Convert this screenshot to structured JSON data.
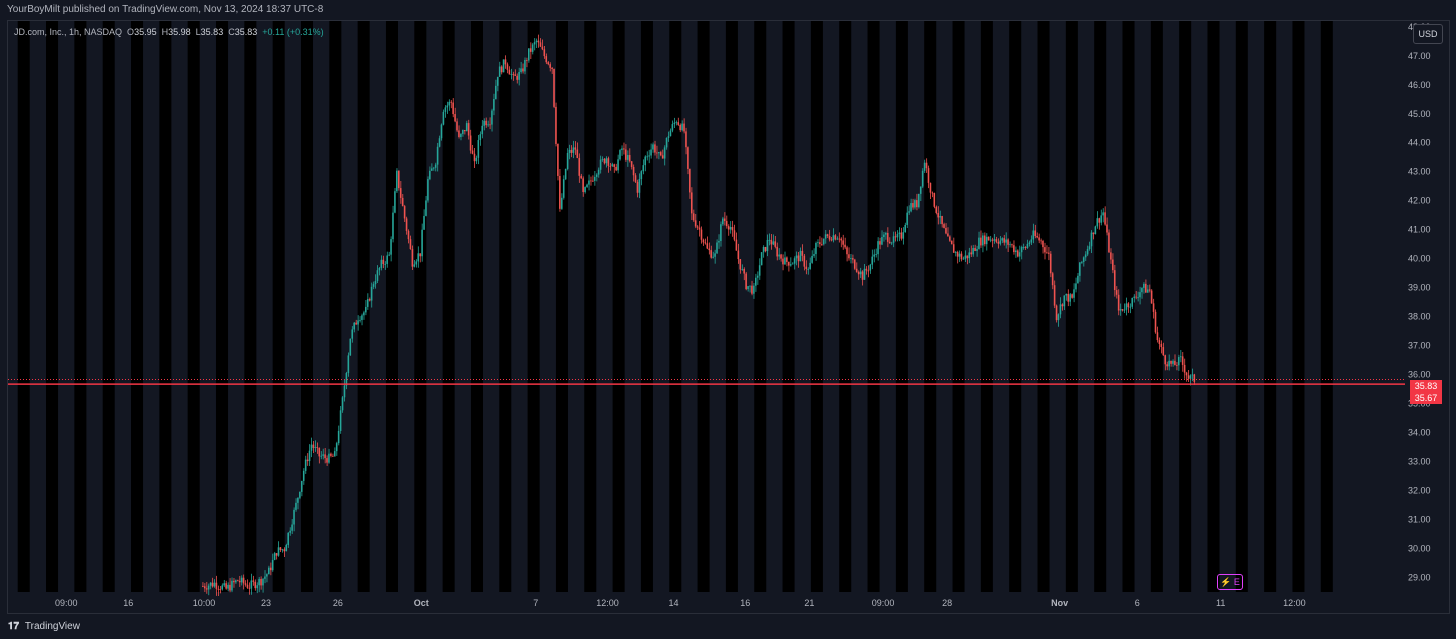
{
  "header": {
    "published_text": "YourBoyMilt published on TradingView.com, Nov 13, 2024 18:37 UTC-8"
  },
  "legend": {
    "symbol": "JD.com, Inc., 1h, NASDAQ",
    "open_label": "O",
    "open": "35.95",
    "high_label": "H",
    "high": "35.98",
    "low_label": "L",
    "low": "35.83",
    "close_label": "C",
    "close": "35.83",
    "change": "+0.11 (+0.31%)"
  },
  "currency_button": "USD",
  "footer": {
    "brand_logo": "𝟏𝟕",
    "brand_name": "TradingView"
  },
  "earnings_marker": "⚡ E",
  "price_tags": {
    "last": "35.83",
    "level": "35.67"
  },
  "colors": {
    "background": "#131722",
    "up": "#26a69a",
    "down": "#ef5350",
    "line": "#f23645",
    "session_band": "#000000"
  },
  "chart_data": {
    "type": "candlestick",
    "symbol": "JD.com, Inc.",
    "interval": "1h",
    "exchange": "NASDAQ",
    "y_axis": {
      "ylim": [
        28.5,
        48.2
      ],
      "ticks": [
        "48.00",
        "47.00",
        "46.00",
        "45.00",
        "44.00",
        "43.00",
        "42.00",
        "41.00",
        "40.00",
        "39.00",
        "38.00",
        "37.00",
        "36.00",
        "35.00",
        "34.00",
        "33.00",
        "32.00",
        "31.00",
        "30.00",
        "29.00"
      ],
      "grid": false
    },
    "x_axis": {
      "ticks": [
        {
          "label": "09:00",
          "idx": 30
        },
        {
          "label": "16",
          "idx": 62
        },
        {
          "label": "10:00",
          "idx": 101
        },
        {
          "label": "23",
          "idx": 133
        },
        {
          "label": "26",
          "idx": 170
        },
        {
          "label": "Oct",
          "idx": 213
        },
        {
          "label": "7",
          "idx": 272
        },
        {
          "label": "12:00",
          "idx": 309
        },
        {
          "label": "14",
          "idx": 343
        },
        {
          "label": "16",
          "idx": 380
        },
        {
          "label": "21",
          "idx": 413
        },
        {
          "label": "09:00",
          "idx": 451
        },
        {
          "label": "28",
          "idx": 484
        },
        {
          "label": "Nov",
          "idx": 542
        },
        {
          "label": "6",
          "idx": 582
        },
        {
          "label": "11",
          "idx": 625
        },
        {
          "label": "12:00",
          "idx": 663
        }
      ]
    },
    "horizontal_lines": [
      {
        "value": 35.83,
        "label": "35.83"
      },
      {
        "value": 35.67,
        "label": "35.67"
      }
    ],
    "close_path": [
      [
        100,
        28.7
      ],
      [
        106,
        28.8
      ],
      [
        112,
        28.6
      ],
      [
        118,
        28.9
      ],
      [
        124,
        28.7
      ],
      [
        130,
        28.9
      ],
      [
        134,
        29.2
      ],
      [
        138,
        29.9
      ],
      [
        142,
        30.0
      ],
      [
        148,
        31.5
      ],
      [
        152,
        32.7
      ],
      [
        156,
        33.6
      ],
      [
        160,
        33.2
      ],
      [
        165,
        33.1
      ],
      [
        168,
        33.2
      ],
      [
        172,
        35.1
      ],
      [
        176,
        37.3
      ],
      [
        180,
        38.0
      ],
      [
        184,
        38.2
      ],
      [
        188,
        39.2
      ],
      [
        192,
        39.8
      ],
      [
        196,
        40.1
      ],
      [
        200,
        42.9
      ],
      [
        204,
        41.4
      ],
      [
        208,
        39.9
      ],
      [
        212,
        40.2
      ],
      [
        216,
        42.7
      ],
      [
        220,
        43.4
      ],
      [
        224,
        45.2
      ],
      [
        228,
        45.4
      ],
      [
        232,
        44.1
      ],
      [
        236,
        44.6
      ],
      [
        240,
        43.2
      ],
      [
        244,
        44.7
      ],
      [
        248,
        44.8
      ],
      [
        252,
        46.4
      ],
      [
        256,
        46.8
      ],
      [
        260,
        46.2
      ],
      [
        264,
        46.4
      ],
      [
        268,
        47.1
      ],
      [
        272,
        47.5
      ],
      [
        276,
        47.0
      ],
      [
        280,
        46.6
      ],
      [
        284,
        41.6
      ],
      [
        288,
        43.6
      ],
      [
        292,
        43.8
      ],
      [
        296,
        42.2
      ],
      [
        300,
        42.7
      ],
      [
        304,
        43.2
      ],
      [
        308,
        43.5
      ],
      [
        312,
        43.0
      ],
      [
        316,
        43.8
      ],
      [
        320,
        43.3
      ],
      [
        324,
        42.4
      ],
      [
        328,
        43.5
      ],
      [
        332,
        43.9
      ],
      [
        336,
        43.4
      ],
      [
        340,
        44.3
      ],
      [
        344,
        44.8
      ],
      [
        348,
        44.4
      ],
      [
        352,
        41.5
      ],
      [
        356,
        41.0
      ],
      [
        360,
        40.3
      ],
      [
        364,
        40.1
      ],
      [
        368,
        41.4
      ],
      [
        372,
        41.1
      ],
      [
        376,
        40.0
      ],
      [
        380,
        39.1
      ],
      [
        384,
        38.9
      ],
      [
        388,
        40.1
      ],
      [
        392,
        40.7
      ],
      [
        396,
        40.2
      ],
      [
        400,
        39.9
      ],
      [
        404,
        39.9
      ],
      [
        408,
        40.1
      ],
      [
        412,
        39.6
      ],
      [
        416,
        40.4
      ],
      [
        420,
        40.7
      ],
      [
        424,
        40.8
      ],
      [
        428,
        40.8
      ],
      [
        432,
        40.1
      ],
      [
        436,
        39.8
      ],
      [
        440,
        39.4
      ],
      [
        444,
        39.8
      ],
      [
        448,
        40.5
      ],
      [
        452,
        40.8
      ],
      [
        456,
        40.6
      ],
      [
        460,
        40.8
      ],
      [
        464,
        41.8
      ],
      [
        468,
        41.9
      ],
      [
        472,
        43.4
      ],
      [
        476,
        42.1
      ],
      [
        480,
        41.3
      ],
      [
        484,
        40.6
      ],
      [
        488,
        40.2
      ],
      [
        492,
        40.0
      ],
      [
        496,
        40.2
      ],
      [
        500,
        40.6
      ],
      [
        504,
        40.7
      ],
      [
        508,
        40.7
      ],
      [
        512,
        40.6
      ],
      [
        516,
        40.5
      ],
      [
        520,
        40.2
      ],
      [
        524,
        40.4
      ],
      [
        528,
        40.8
      ],
      [
        532,
        40.6
      ],
      [
        536,
        40.1
      ],
      [
        540,
        38.0
      ],
      [
        544,
        38.7
      ],
      [
        548,
        38.6
      ],
      [
        552,
        39.7
      ],
      [
        556,
        40.4
      ],
      [
        560,
        41.2
      ],
      [
        564,
        41.6
      ],
      [
        568,
        39.9
      ],
      [
        572,
        38.2
      ],
      [
        576,
        38.4
      ],
      [
        580,
        38.6
      ],
      [
        584,
        39.0
      ],
      [
        588,
        38.9
      ],
      [
        592,
        37.2
      ],
      [
        596,
        36.5
      ],
      [
        600,
        36.3
      ],
      [
        604,
        36.5
      ],
      [
        608,
        35.9
      ],
      [
        612,
        35.8
      ]
    ]
  }
}
